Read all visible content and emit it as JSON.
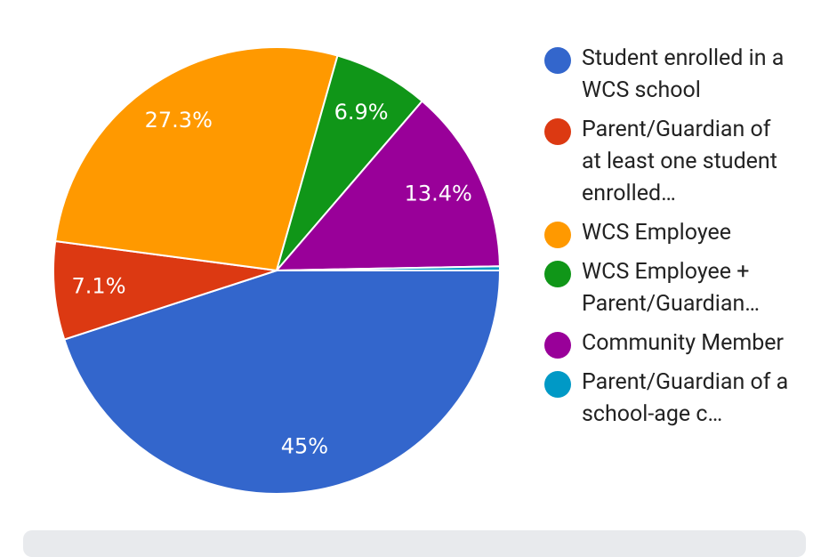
{
  "chart_data": {
    "type": "pie",
    "categories": [
      "Student enrolled in a WCS school",
      "Parent/Guardian of at least one student enrolled…",
      "WCS Employee",
      "WCS Employee + Parent/Guardian…",
      "Community Member",
      "Parent/Guardian of a school-age c…"
    ],
    "values": [
      45,
      7.1,
      27.3,
      6.9,
      13.4,
      0.3
    ],
    "value_labels": [
      "45%",
      "7.1%",
      "27.3%",
      "6.9%",
      "13.4%",
      null
    ],
    "colors": [
      "#3366cc",
      "#dc3912",
      "#ff9900",
      "#109618",
      "#990099",
      "#0099c6"
    ],
    "legend": "right"
  }
}
